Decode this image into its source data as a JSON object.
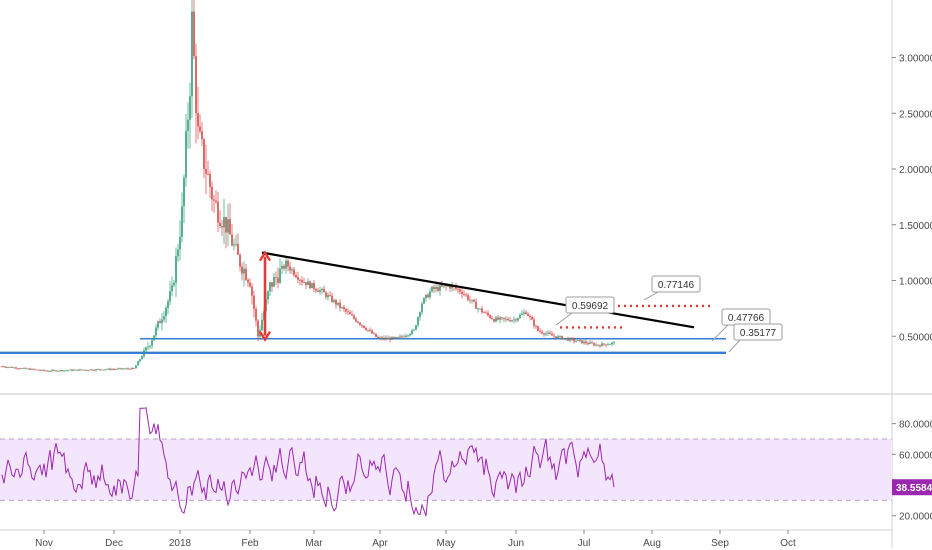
{
  "chart_data": {
    "type": "candlestick",
    "x_ticks": [
      "Nov",
      "Dec",
      "2018",
      "Feb",
      "Mar",
      "Apr",
      "May",
      "Jun",
      "Jul",
      "Aug",
      "Sep",
      "Oct"
    ],
    "price_panel": {
      "y_ticks": [
        "3.00000",
        "2.50000",
        "2.00000",
        "1.50000",
        "1.00000",
        "0.50000"
      ],
      "y_tick_values": [
        3.0,
        2.5,
        2.0,
        1.5,
        1.0,
        0.5
      ],
      "ylim": [
        0.0,
        3.48
      ],
      "price_path": [
        {
          "t": 0,
          "p": 0.23
        },
        {
          "t": 22,
          "p": 0.19
        },
        {
          "t": 44,
          "p": 0.2
        },
        {
          "t": 66,
          "p": 0.21
        },
        {
          "t": 74,
          "p": 0.44
        },
        {
          "t": 78,
          "p": 0.6
        },
        {
          "t": 85,
          "p": 0.9
        },
        {
          "t": 90,
          "p": 1.6
        },
        {
          "t": 94,
          "p": 2.8
        },
        {
          "t": 95,
          "p": 3.3
        },
        {
          "t": 98,
          "p": 2.3
        },
        {
          "t": 102,
          "p": 2.0
        },
        {
          "t": 106,
          "p": 1.7
        },
        {
          "t": 112,
          "p": 1.5
        },
        {
          "t": 118,
          "p": 1.2
        },
        {
          "t": 124,
          "p": 1.0
        },
        {
          "t": 128,
          "p": 0.5
        },
        {
          "t": 134,
          "p": 0.95
        },
        {
          "t": 142,
          "p": 1.15
        },
        {
          "t": 150,
          "p": 1.0
        },
        {
          "t": 160,
          "p": 0.9
        },
        {
          "t": 170,
          "p": 0.75
        },
        {
          "t": 180,
          "p": 0.6
        },
        {
          "t": 188,
          "p": 0.48
        },
        {
          "t": 198,
          "p": 0.48
        },
        {
          "t": 206,
          "p": 0.55
        },
        {
          "t": 210,
          "p": 0.8
        },
        {
          "t": 215,
          "p": 0.92
        },
        {
          "t": 224,
          "p": 0.95
        },
        {
          "t": 230,
          "p": 0.9
        },
        {
          "t": 238,
          "p": 0.75
        },
        {
          "t": 246,
          "p": 0.65
        },
        {
          "t": 256,
          "p": 0.65
        },
        {
          "t": 262,
          "p": 0.72
        },
        {
          "t": 268,
          "p": 0.55
        },
        {
          "t": 276,
          "p": 0.5
        },
        {
          "t": 284,
          "p": 0.47
        },
        {
          "t": 298,
          "p": 0.42
        },
        {
          "t": 306,
          "p": 0.44
        }
      ],
      "support_levels": [
        {
          "value": 0.47766,
          "label": "0.47766",
          "color": "#3a7bd5"
        },
        {
          "value": 0.35177,
          "label": "0.35177",
          "color": "#3a7bd5"
        }
      ],
      "resistance_trendline": {
        "from": {
          "t": 130,
          "p": 1.25
        },
        "to": {
          "t": 346,
          "p": 0.58
        },
        "color": "#000000"
      },
      "dotted_levels": [
        {
          "value": 0.77146,
          "label": "0.77146",
          "color": "#e53935"
        },
        {
          "value": 0.59692,
          "label": "0.59692",
          "color": "#e53935"
        }
      ],
      "measure_arrow": {
        "top": 1.25,
        "bottom": 0.47,
        "color": "#e53935"
      }
    },
    "rsi_panel": {
      "y_ticks": [
        "80.0000",
        "60.0000",
        "20.0000"
      ],
      "y_tick_values": [
        80,
        60,
        20
      ],
      "ylim": [
        12,
        98
      ],
      "band": [
        30,
        70
      ],
      "current_value": "38.5584",
      "line_color": "#9c27b0",
      "band_color": "#f3e5fb"
    }
  }
}
